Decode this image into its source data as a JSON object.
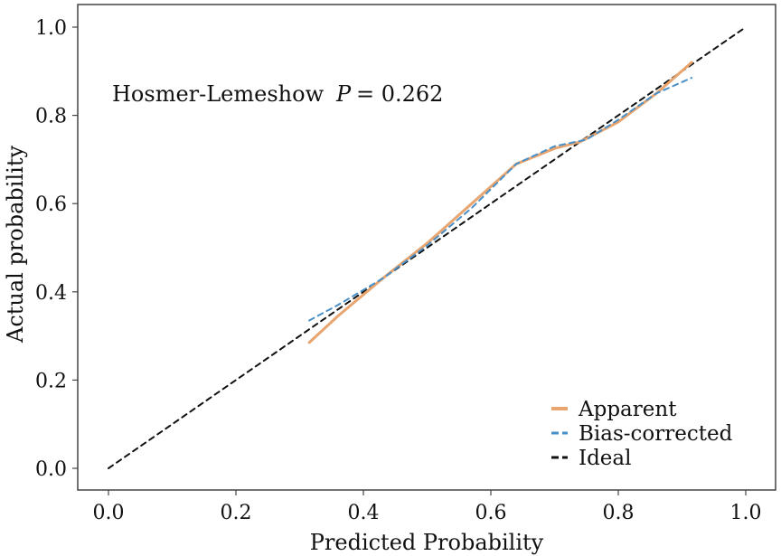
{
  "chart_data": {
    "type": "line",
    "xlabel": "Predicted Probability",
    "ylabel": "Actual probability",
    "xlim": [
      0.0,
      1.0
    ],
    "ylim": [
      0.0,
      1.0
    ],
    "x_ticks": [
      "0.0",
      "0.2",
      "0.4",
      "0.6",
      "0.8",
      "1.0"
    ],
    "y_ticks": [
      "0.0",
      "0.2",
      "0.4",
      "0.6",
      "0.8",
      "1.0"
    ],
    "grid": false,
    "legend_position": "bottom-right",
    "annotation": {
      "prefix": "Hosmer-Lemeshow",
      "p_label": "P",
      "p_value": "= 0.262"
    },
    "series": [
      {
        "name": "Apparent",
        "color": "#E8A56F",
        "style": "solid",
        "x": [
          0.315,
          0.36,
          0.43,
          0.5,
          0.57,
          0.64,
          0.7,
          0.74,
          0.8,
          0.86,
          0.915
        ],
        "y": [
          0.285,
          0.345,
          0.43,
          0.51,
          0.6,
          0.69,
          0.725,
          0.74,
          0.785,
          0.85,
          0.92
        ]
      },
      {
        "name": "Bias-corrected",
        "color": "#4A90C8",
        "style": "dashed",
        "x": [
          0.315,
          0.36,
          0.43,
          0.5,
          0.57,
          0.64,
          0.7,
          0.75,
          0.8,
          0.86,
          0.915
        ],
        "y": [
          0.335,
          0.37,
          0.43,
          0.505,
          0.59,
          0.69,
          0.73,
          0.745,
          0.79,
          0.85,
          0.885
        ]
      },
      {
        "name": "Ideal",
        "color": "#111111",
        "style": "dashed",
        "x": [
          0.0,
          1.0
        ],
        "y": [
          0.0,
          1.0
        ]
      }
    ]
  }
}
